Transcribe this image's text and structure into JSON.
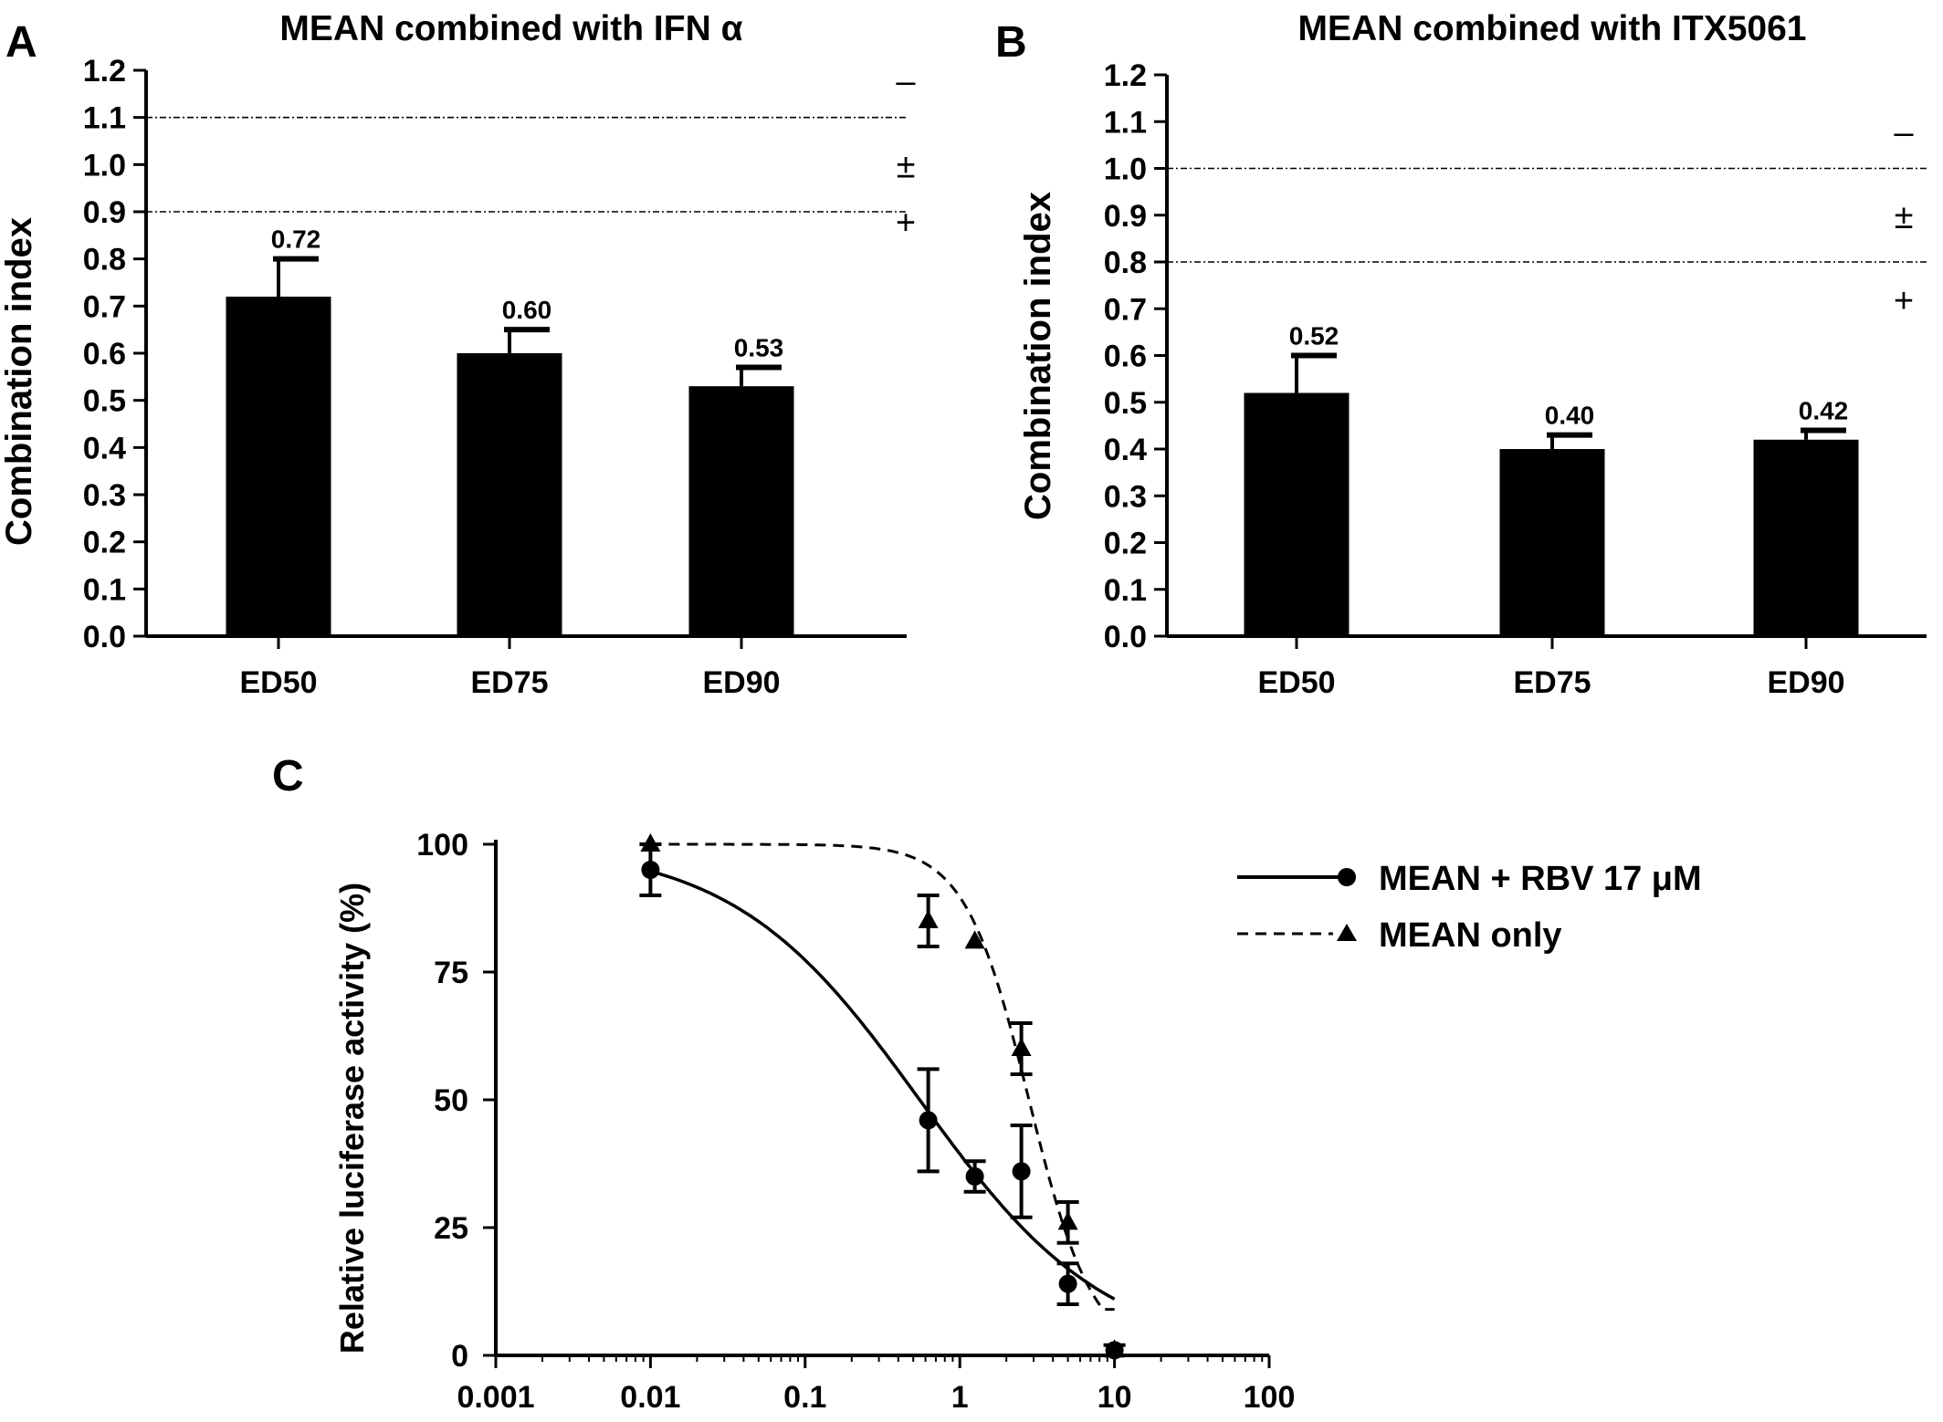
{
  "chart_data": [
    {
      "panel_label": "A",
      "type": "bar",
      "title": "MEAN combined with IFN α",
      "ylabel": "Combination index",
      "xlabel": "",
      "categories": [
        "ED50",
        "ED75",
        "ED90"
      ],
      "values": [
        0.72,
        0.6,
        0.53
      ],
      "errors": [
        0.08,
        0.05,
        0.04
      ],
      "value_labels": [
        "0.72",
        "0.60",
        "0.53"
      ],
      "ylim": [
        0,
        1.2
      ],
      "yticks": [
        "0.0",
        "0.1",
        "0.2",
        "0.3",
        "0.4",
        "0.5",
        "0.6",
        "0.7",
        "0.8",
        "0.9",
        "1.0",
        "1.1",
        "1.2"
      ],
      "reference_lines": [
        1.1,
        0.9
      ],
      "zone_labels": [
        {
          "text": "–",
          "y": 1.18
        },
        {
          "text": "±",
          "y": 1.0
        },
        {
          "text": "+",
          "y": 0.88
        }
      ],
      "grid": false
    },
    {
      "panel_label": "B",
      "type": "bar",
      "title": "MEAN combined with ITX5061",
      "ylabel": "Combination index",
      "xlabel": "",
      "categories": [
        "ED50",
        "ED75",
        "ED90"
      ],
      "values": [
        0.52,
        0.4,
        0.42
      ],
      "errors": [
        0.08,
        0.03,
        0.02
      ],
      "value_labels": [
        "0.52",
        "0.40",
        "0.42"
      ],
      "ylim": [
        0,
        1.2
      ],
      "yticks": [
        "0.0",
        "0.1",
        "0.2",
        "0.3",
        "0.4",
        "0.5",
        "0.6",
        "0.7",
        "0.8",
        "0.9",
        "1.0",
        "1.1",
        "1.2"
      ],
      "reference_lines": [
        1.0,
        0.8
      ],
      "zone_labels": [
        {
          "text": "–",
          "y": 1.08
        },
        {
          "text": "±",
          "y": 0.9
        },
        {
          "text": "+",
          "y": 0.72
        }
      ],
      "grid": false
    },
    {
      "panel_label": "C",
      "type": "line",
      "title": "",
      "ylabel": "Relative luciferase activity (%)",
      "xlabel": "",
      "xscale": "log",
      "xlim": [
        0.001,
        100
      ],
      "ylim": [
        0,
        100
      ],
      "xticks": [
        "0.001",
        "0.01",
        "0.1",
        "1",
        "10",
        "100"
      ],
      "yticks": [
        "0",
        "25",
        "50",
        "75",
        "100"
      ],
      "legend_position": "top-right",
      "grid": false,
      "series": [
        {
          "name": "MEAN + RBV 17 μM",
          "line_style": "solid",
          "marker": "circle",
          "points": [
            {
              "x": 0.01,
              "y": 95,
              "err": 5
            },
            {
              "x": 0.625,
              "y": 46,
              "err": 10
            },
            {
              "x": 1.25,
              "y": 35,
              "err": 3
            },
            {
              "x": 2.5,
              "y": 36,
              "err": 9
            },
            {
              "x": 5,
              "y": 14,
              "err": 4
            },
            {
              "x": 10,
              "y": 1,
              "err": 1
            }
          ],
          "fit": {
            "top": 100,
            "bottom": 0,
            "ec50": 0.55,
            "hill": 0.72
          }
        },
        {
          "name": "MEAN only",
          "line_style": "dashed",
          "marker": "triangle",
          "points": [
            {
              "x": 0.01,
              "y": 100,
              "err": 0
            },
            {
              "x": 0.625,
              "y": 85,
              "err": 5
            },
            {
              "x": 1.25,
              "y": 81,
              "err": 0
            },
            {
              "x": 2.5,
              "y": 60,
              "err": 5
            },
            {
              "x": 5,
              "y": 26,
              "err": 4
            },
            {
              "x": 10,
              "y": 1,
              "err": 0
            }
          ],
          "fit": {
            "top": 100,
            "bottom": 0,
            "ec50": 2.8,
            "hill": 2.1
          }
        }
      ]
    }
  ]
}
